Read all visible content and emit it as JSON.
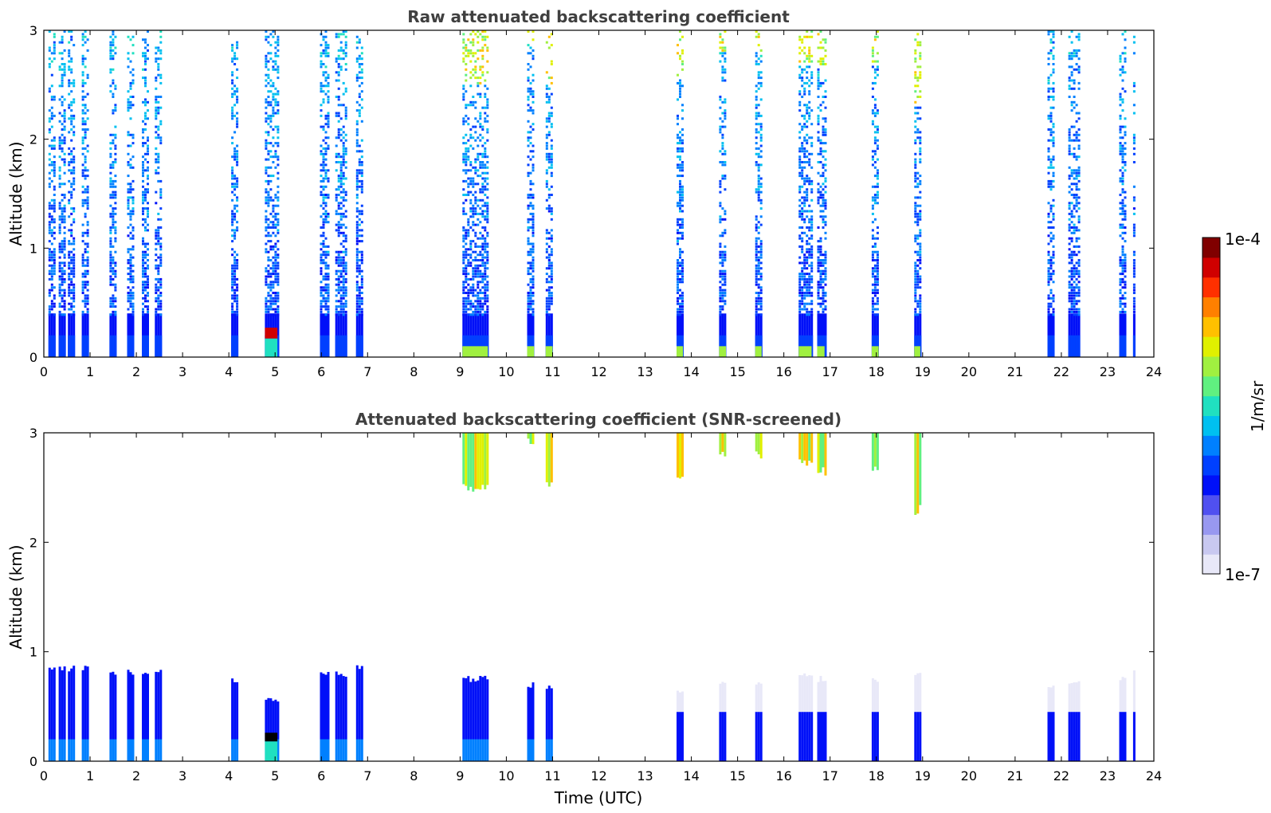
{
  "chart_data": [
    {
      "type": "heatmap",
      "title": "Raw attenuated backscattering coefficient",
      "xlabel": "",
      "ylabel": "Altitude (km)",
      "xlim": [
        0,
        24
      ],
      "ylim": [
        0,
        3
      ],
      "xticks": [
        0,
        1,
        2,
        3,
        4,
        5,
        6,
        7,
        8,
        9,
        10,
        11,
        12,
        13,
        14,
        15,
        16,
        17,
        18,
        19,
        20,
        21,
        22,
        23,
        24
      ],
      "yticks": [
        0,
        1,
        2,
        3
      ],
      "xtick_labels": [
        "0",
        "1",
        "2",
        "3",
        "4",
        "5",
        "6",
        "7",
        "8",
        "9",
        "10",
        "11",
        "12",
        "13",
        "14",
        "15",
        "16",
        "17",
        "18",
        "19",
        "20",
        "21",
        "22",
        "23",
        "24"
      ],
      "ytick_labels": [
        "0",
        "1",
        "2",
        "3"
      ],
      "profiles": [
        {
          "t0": 0.1,
          "t1": 0.25,
          "level": "noisy",
          "strong_top": 0.0
        },
        {
          "t0": 0.32,
          "t1": 0.45,
          "level": "noisy",
          "strong_top": 0.0
        },
        {
          "t0": 0.52,
          "t1": 0.65,
          "level": "noisy",
          "strong_top": 0.0
        },
        {
          "t0": 0.82,
          "t1": 0.95,
          "level": "noisy",
          "strong_top": 0.0
        },
        {
          "t0": 1.42,
          "t1": 1.55,
          "level": "noisy",
          "strong_top": 0.0
        },
        {
          "t0": 1.8,
          "t1": 1.93,
          "level": "noisy",
          "strong_top": 0.0
        },
        {
          "t0": 2.12,
          "t1": 2.27,
          "level": "noisy",
          "strong_top": 0.0
        },
        {
          "t0": 2.4,
          "t1": 2.53,
          "level": "noisy",
          "strong_top": 0.0
        },
        {
          "t0": 4.05,
          "t1": 4.2,
          "level": "noisy",
          "strong_top": 0.0
        },
        {
          "t0": 4.78,
          "t1": 5.05,
          "level": "aerosol",
          "strong_top": 0.0
        },
        {
          "t0": 5.97,
          "t1": 6.15,
          "level": "noisy",
          "strong_top": 0.0
        },
        {
          "t0": 6.3,
          "t1": 6.52,
          "level": "noisy",
          "strong_top": 0.0
        },
        {
          "t0": 6.75,
          "t1": 6.9,
          "level": "noisy",
          "strong_top": 0.0
        },
        {
          "t0": 9.05,
          "t1": 9.6,
          "level": "cloud",
          "strong_top": 2.5
        },
        {
          "t0": 10.45,
          "t1": 10.6,
          "level": "cloud",
          "strong_top": 2.9
        },
        {
          "t0": 10.85,
          "t1": 11.0,
          "level": "cloud",
          "strong_top": 2.5
        },
        {
          "t0": 13.68,
          "t1": 13.82,
          "level": "cloud",
          "strong_top": 2.55
        },
        {
          "t0": 14.6,
          "t1": 14.75,
          "level": "cloud",
          "strong_top": 2.8
        },
        {
          "t0": 15.38,
          "t1": 15.52,
          "level": "cloud",
          "strong_top": 2.8
        },
        {
          "t0": 16.32,
          "t1": 16.6,
          "level": "cloud",
          "strong_top": 2.7
        },
        {
          "t0": 16.72,
          "t1": 16.88,
          "level": "cloud",
          "strong_top": 2.65
        },
        {
          "t0": 17.9,
          "t1": 18.05,
          "level": "cloud",
          "strong_top": 2.7
        },
        {
          "t0": 18.82,
          "t1": 18.95,
          "level": "cloud",
          "strong_top": 2.3
        },
        {
          "t0": 21.7,
          "t1": 21.85,
          "level": "noisy",
          "strong_top": 0.0
        },
        {
          "t0": 22.15,
          "t1": 22.4,
          "level": "noisy",
          "strong_top": 0.0
        },
        {
          "t0": 23.25,
          "t1": 23.38,
          "level": "noisy",
          "strong_top": 0.0
        },
        {
          "t0": 23.55,
          "t1": 23.6,
          "level": "noisy",
          "strong_top": 0.0
        }
      ]
    },
    {
      "type": "heatmap",
      "title": "Attenuated backscattering coefficient (SNR-screened)",
      "xlabel": "Time (UTC)",
      "ylabel": "Altitude (km)",
      "xlim": [
        0,
        24
      ],
      "ylim": [
        0,
        3
      ],
      "xticks": [
        0,
        1,
        2,
        3,
        4,
        5,
        6,
        7,
        8,
        9,
        10,
        11,
        12,
        13,
        14,
        15,
        16,
        17,
        18,
        19,
        20,
        21,
        22,
        23,
        24
      ],
      "yticks": [
        0,
        1,
        2,
        3
      ],
      "xtick_labels": [
        "0",
        "1",
        "2",
        "3",
        "4",
        "5",
        "6",
        "7",
        "8",
        "9",
        "10",
        "11",
        "12",
        "13",
        "14",
        "15",
        "16",
        "17",
        "18",
        "19",
        "20",
        "21",
        "22",
        "23",
        "24"
      ],
      "ytick_labels": [
        "0",
        "1",
        "2",
        "3"
      ],
      "profiles": [
        {
          "t0": 0.1,
          "t1": 0.25,
          "low_top": 0.85,
          "cloud_base": 0,
          "kind": "blue"
        },
        {
          "t0": 0.32,
          "t1": 0.45,
          "low_top": 0.85,
          "cloud_base": 0,
          "kind": "blue"
        },
        {
          "t0": 0.52,
          "t1": 0.65,
          "low_top": 0.85,
          "cloud_base": 0,
          "kind": "blue"
        },
        {
          "t0": 0.82,
          "t1": 0.95,
          "low_top": 0.85,
          "cloud_base": 0,
          "kind": "blue"
        },
        {
          "t0": 1.42,
          "t1": 1.55,
          "low_top": 0.82,
          "cloud_base": 0,
          "kind": "blue"
        },
        {
          "t0": 1.8,
          "t1": 1.93,
          "low_top": 0.82,
          "cloud_base": 0,
          "kind": "blue"
        },
        {
          "t0": 2.12,
          "t1": 2.27,
          "low_top": 0.82,
          "cloud_base": 0,
          "kind": "blue"
        },
        {
          "t0": 2.4,
          "t1": 2.53,
          "low_top": 0.82,
          "cloud_base": 0,
          "kind": "blue"
        },
        {
          "t0": 4.05,
          "t1": 4.2,
          "low_top": 0.75,
          "cloud_base": 0,
          "kind": "blue"
        },
        {
          "t0": 4.78,
          "t1": 5.05,
          "low_top": 0.55,
          "cloud_base": 0,
          "kind": "aerosol"
        },
        {
          "t0": 5.97,
          "t1": 6.15,
          "low_top": 0.8,
          "cloud_base": 0,
          "kind": "blue"
        },
        {
          "t0": 6.3,
          "t1": 6.52,
          "low_top": 0.8,
          "cloud_base": 0,
          "kind": "blue"
        },
        {
          "t0": 6.75,
          "t1": 6.9,
          "low_top": 0.85,
          "cloud_base": 0,
          "kind": "blue"
        },
        {
          "t0": 9.05,
          "t1": 9.6,
          "low_top": 0.75,
          "cloud_base": 2.5,
          "kind": "blue"
        },
        {
          "t0": 10.45,
          "t1": 10.6,
          "low_top": 0.7,
          "cloud_base": 2.9,
          "kind": "blue"
        },
        {
          "t0": 10.85,
          "t1": 11.0,
          "low_top": 0.68,
          "cloud_base": 2.5,
          "kind": "blue"
        },
        {
          "t0": 13.68,
          "t1": 13.82,
          "low_top": 0.65,
          "cloud_base": 2.55,
          "kind": "faint"
        },
        {
          "t0": 14.6,
          "t1": 14.75,
          "low_top": 0.7,
          "cloud_base": 2.8,
          "kind": "faint"
        },
        {
          "t0": 15.38,
          "t1": 15.52,
          "low_top": 0.72,
          "cloud_base": 2.8,
          "kind": "faint"
        },
        {
          "t0": 16.32,
          "t1": 16.6,
          "low_top": 0.8,
          "cloud_base": 2.75,
          "kind": "faint"
        },
        {
          "t0": 16.72,
          "t1": 16.88,
          "low_top": 0.75,
          "cloud_base": 2.65,
          "kind": "faint"
        },
        {
          "t0": 17.9,
          "t1": 18.05,
          "low_top": 0.75,
          "cloud_base": 2.7,
          "kind": "faint"
        },
        {
          "t0": 18.82,
          "t1": 18.95,
          "low_top": 0.8,
          "cloud_base": 2.3,
          "kind": "faint"
        },
        {
          "t0": 21.7,
          "t1": 21.85,
          "low_top": 0.7,
          "cloud_base": 0,
          "kind": "faint"
        },
        {
          "t0": 22.15,
          "t1": 22.4,
          "low_top": 0.72,
          "cloud_base": 0,
          "kind": "faint"
        },
        {
          "t0": 23.25,
          "t1": 23.38,
          "low_top": 0.75,
          "cloud_base": 0,
          "kind": "faint"
        },
        {
          "t0": 23.55,
          "t1": 23.6,
          "low_top": 0.8,
          "cloud_base": 0,
          "kind": "faint"
        }
      ]
    }
  ],
  "colorbar": {
    "label": "1/m/sr",
    "max_label": "1e-4",
    "min_label": "1e-7",
    "colors": [
      "#e8e8f8",
      "#c8c8f0",
      "#9898f0",
      "#5050f0",
      "#0010f8",
      "#0040ff",
      "#0080ff",
      "#00c0f0",
      "#20e0c0",
      "#60f080",
      "#a0f040",
      "#e0f000",
      "#ffc000",
      "#ff8000",
      "#ff3000",
      "#d00000",
      "#800000"
    ]
  }
}
